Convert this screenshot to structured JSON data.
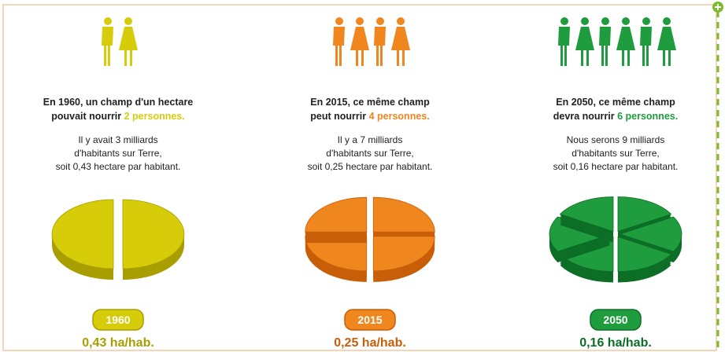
{
  "panels": [
    {
      "year": "1960",
      "color": "#d6cc0a",
      "dark": "#a89e00",
      "people": 2,
      "headline": [
        "En 1960, un champ d'un hectare",
        "pouvait nourrir "
      ],
      "highlight": "2 personnes",
      "headline_end": ".",
      "body": [
        "Il y avait 3 milliards",
        "d'habitants sur Terre,",
        "soit 0,43 hectare par habitant."
      ],
      "ratio": "0,43 ha/hab."
    },
    {
      "year": "2015",
      "color": "#f0861e",
      "dark": "#c85e08",
      "people": 4,
      "headline": [
        "En 2015, ce même champ",
        "peut nourrir "
      ],
      "highlight": "4 personnes",
      "headline_end": ".",
      "body": [
        "Il y a 7 milliards",
        "d'habitants sur Terre,",
        "soit 0,25 hectare par habitant."
      ],
      "ratio": "0,25 ha/hab."
    },
    {
      "year": "2050",
      "color": "#1f9d3e",
      "dark": "#0d6e26",
      "people": 6,
      "headline": [
        "En 2050, ce même champ",
        "devra nourrir "
      ],
      "highlight": "6 personnes",
      "headline_end": ".",
      "body": [
        "Nous serons 9 milliards",
        "d'habitants sur Terre,",
        "soit 0,16 hectare par habitant."
      ],
      "ratio": "0,16 ha/hab."
    }
  ]
}
